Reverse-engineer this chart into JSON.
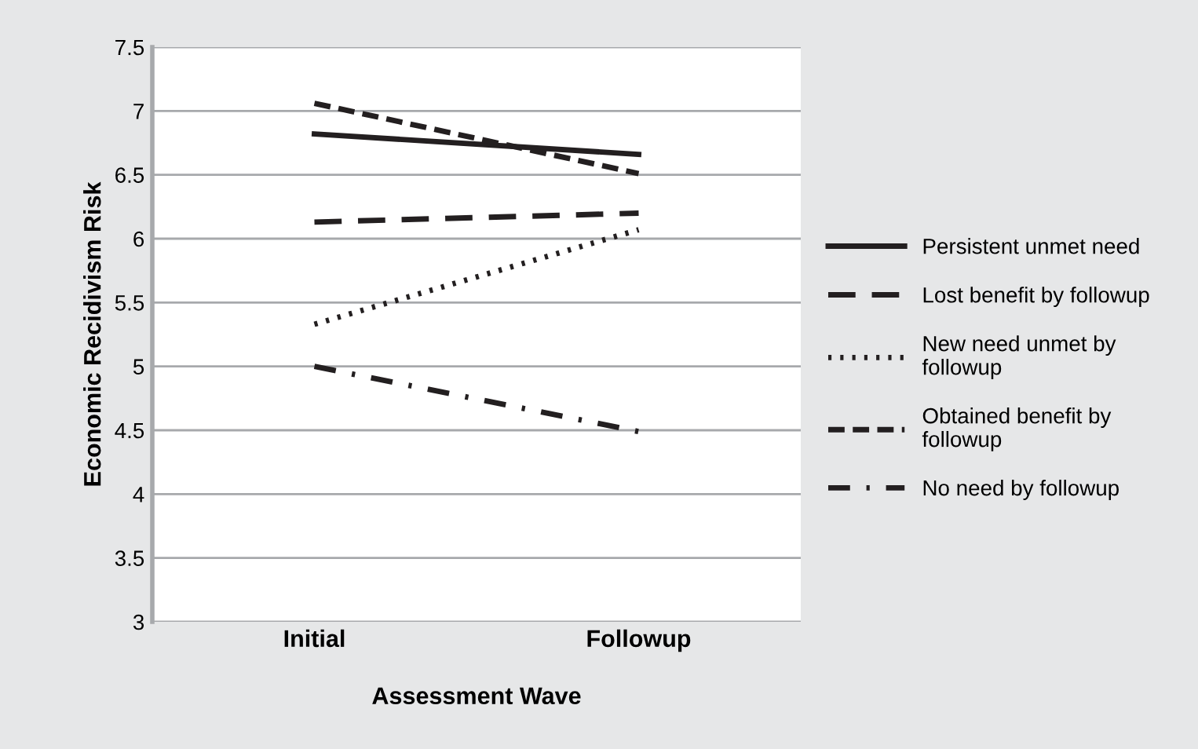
{
  "chart_data": {
    "type": "line",
    "xlabel": "Assessment Wave",
    "ylabel": "Economic Recidivism Risk",
    "categories": [
      "Initial",
      "Followup"
    ],
    "series": [
      {
        "name": "Persistent unmet need",
        "color": "#231f20",
        "values": [
          6.82,
          6.66
        ],
        "line_style": "solid"
      },
      {
        "name": "Lost benefit by followup",
        "color": "#231f20",
        "values": [
          6.13,
          6.2
        ],
        "line_style": "longdash"
      },
      {
        "name": "New need unmet by followup",
        "color": "#231f20",
        "values": [
          5.33,
          6.07
        ],
        "line_style": "dotted"
      },
      {
        "name": "Obtained benefit by followup",
        "color": "#231f20",
        "values": [
          7.06,
          6.51
        ],
        "line_style": "dashed"
      },
      {
        "name": "No need by followup",
        "color": "#231f20",
        "values": [
          5.0,
          4.49
        ],
        "line_style": "dashdot"
      }
    ],
    "ylim": [
      3,
      7.5
    ],
    "yticks": [
      3,
      3.5,
      4,
      4.5,
      5,
      5.5,
      6,
      6.5,
      7,
      7.5
    ],
    "grid": "y",
    "legend": "right",
    "marker": "none"
  }
}
